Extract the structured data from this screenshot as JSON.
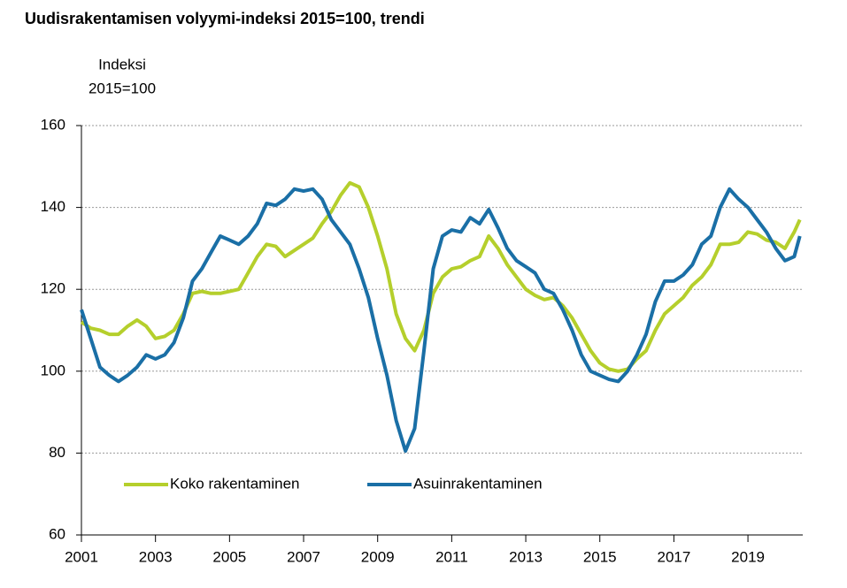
{
  "chart_data": {
    "type": "line",
    "title": "Uudisrakentamisen volyymi-indeksi 2015=100, trendi",
    "ylabel": [
      "Indeksi",
      "2015=100"
    ],
    "x": [
      2001,
      2001.25,
      2001.5,
      2001.75,
      2002,
      2002.25,
      2002.5,
      2002.75,
      2003,
      2003.25,
      2003.5,
      2003.75,
      2004,
      2004.25,
      2004.5,
      2004.75,
      2005,
      2005.25,
      2005.5,
      2005.75,
      2006,
      2006.25,
      2006.5,
      2006.75,
      2007,
      2007.25,
      2007.5,
      2007.75,
      2008,
      2008.25,
      2008.5,
      2008.75,
      2009,
      2009.25,
      2009.5,
      2009.75,
      2010,
      2010.25,
      2010.5,
      2010.75,
      2011,
      2011.25,
      2011.5,
      2011.75,
      2012,
      2012.25,
      2012.5,
      2012.75,
      2013,
      2013.25,
      2013.5,
      2013.75,
      2014,
      2014.25,
      2014.5,
      2014.75,
      2015,
      2015.25,
      2015.5,
      2015.75,
      2016,
      2016.25,
      2016.5,
      2016.75,
      2017,
      2017.25,
      2017.5,
      2017.75,
      2018,
      2018.25,
      2018.5,
      2018.75,
      2019,
      2019.25,
      2019.5,
      2019.75,
      2020,
      2020.25,
      2020.4
    ],
    "series": [
      {
        "name": "Koko rakentaminen",
        "color": "#b5cf2c",
        "values": [
          112,
          110.5,
          110,
          109,
          109,
          111,
          112.5,
          111,
          108,
          108.5,
          110,
          114,
          119,
          119.5,
          119,
          119,
          119.5,
          120,
          124,
          128,
          131,
          130.5,
          128,
          129.5,
          131,
          132.5,
          136,
          139,
          143,
          146,
          145,
          140,
          133,
          125,
          114,
          108,
          105,
          110,
          119,
          123,
          125,
          125.5,
          127,
          128,
          133,
          130,
          126,
          123,
          120,
          118.5,
          117.5,
          118,
          116,
          113,
          109,
          105,
          102,
          100.5,
          100,
          100.5,
          103,
          105,
          110,
          114,
          116,
          118,
          121,
          123,
          126,
          131,
          131,
          131.5,
          134,
          133.5,
          132,
          131.5,
          130,
          134,
          137
        ]
      },
      {
        "name": "Asuinrakentaminen",
        "color": "#1a6fa6",
        "values": [
          115,
          108,
          101,
          99,
          97.5,
          99,
          101,
          104,
          103,
          104,
          107,
          113,
          122,
          125,
          129,
          133,
          132,
          131,
          133,
          136,
          141,
          140.5,
          142,
          144.5,
          144,
          144.5,
          142,
          137,
          134,
          131,
          125,
          118,
          108,
          99,
          88,
          80.5,
          86,
          105,
          125,
          133,
          134.5,
          134,
          137.5,
          136,
          139.5,
          135,
          130,
          127,
          125.5,
          124,
          120,
          119,
          115,
          110,
          104,
          100,
          99,
          98,
          97.5,
          100,
          104,
          109,
          117,
          122,
          122,
          123.5,
          126,
          131,
          133,
          140,
          144.5,
          142,
          140,
          137,
          134,
          130,
          127,
          128,
          133
        ]
      }
    ],
    "xlim": [
      2001,
      2020.48
    ],
    "xticks": [
      2001,
      2003,
      2005,
      2007,
      2009,
      2011,
      2013,
      2015,
      2017,
      2019
    ],
    "ylim": [
      60,
      160
    ],
    "yticks": [
      60,
      80,
      100,
      120,
      140,
      160
    ],
    "grid": true,
    "legend": "bottom-left"
  }
}
